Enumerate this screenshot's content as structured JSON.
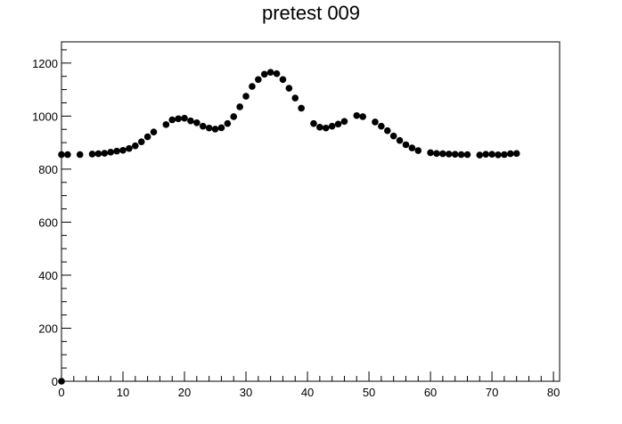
{
  "chart_data": {
    "type": "scatter",
    "title": "pretest 009",
    "xlabel": "",
    "ylabel": "",
    "xlim": [
      0,
      81
    ],
    "ylim": [
      0,
      1280
    ],
    "xticks": [
      0,
      10,
      20,
      30,
      40,
      50,
      60,
      70,
      80
    ],
    "yticks": [
      0,
      200,
      400,
      600,
      800,
      1000,
      1200
    ],
    "grid": false,
    "legend": "none",
    "marker_color": "#000000",
    "series": [
      {
        "points": [
          [
            0,
            0
          ],
          [
            0,
            855
          ],
          [
            1,
            855
          ],
          [
            3,
            855
          ],
          [
            5,
            857
          ],
          [
            6,
            858
          ],
          [
            7,
            860
          ],
          [
            8,
            864
          ],
          [
            9,
            868
          ],
          [
            10,
            871
          ],
          [
            11,
            878
          ],
          [
            12,
            888
          ],
          [
            13,
            903
          ],
          [
            14,
            922
          ],
          [
            15,
            940
          ],
          [
            17,
            968
          ],
          [
            18,
            986
          ],
          [
            19,
            990
          ],
          [
            20,
            992
          ],
          [
            21,
            982
          ],
          [
            22,
            975
          ],
          [
            23,
            962
          ],
          [
            24,
            955
          ],
          [
            25,
            951
          ],
          [
            26,
            956
          ],
          [
            27,
            972
          ],
          [
            28,
            998
          ],
          [
            29,
            1035
          ],
          [
            30,
            1075
          ],
          [
            31,
            1112
          ],
          [
            32,
            1138
          ],
          [
            33,
            1158
          ],
          [
            34,
            1165
          ],
          [
            35,
            1160
          ],
          [
            36,
            1138
          ],
          [
            37,
            1105
          ],
          [
            38,
            1068
          ],
          [
            39,
            1030
          ],
          [
            41,
            972
          ],
          [
            42,
            958
          ],
          [
            43,
            955
          ],
          [
            44,
            962
          ],
          [
            45,
            970
          ],
          [
            46,
            980
          ],
          [
            48,
            1002
          ],
          [
            49,
            998
          ],
          [
            51,
            978
          ],
          [
            52,
            962
          ],
          [
            53,
            945
          ],
          [
            54,
            925
          ],
          [
            55,
            908
          ],
          [
            56,
            892
          ],
          [
            57,
            880
          ],
          [
            58,
            870
          ],
          [
            60,
            862
          ],
          [
            61,
            859
          ],
          [
            62,
            858
          ],
          [
            63,
            857
          ],
          [
            64,
            856
          ],
          [
            65,
            855
          ],
          [
            66,
            855
          ],
          [
            68,
            853
          ],
          [
            69,
            856
          ],
          [
            70,
            856
          ],
          [
            71,
            854
          ],
          [
            72,
            855
          ],
          [
            73,
            858
          ],
          [
            74,
            859
          ]
        ]
      }
    ]
  }
}
